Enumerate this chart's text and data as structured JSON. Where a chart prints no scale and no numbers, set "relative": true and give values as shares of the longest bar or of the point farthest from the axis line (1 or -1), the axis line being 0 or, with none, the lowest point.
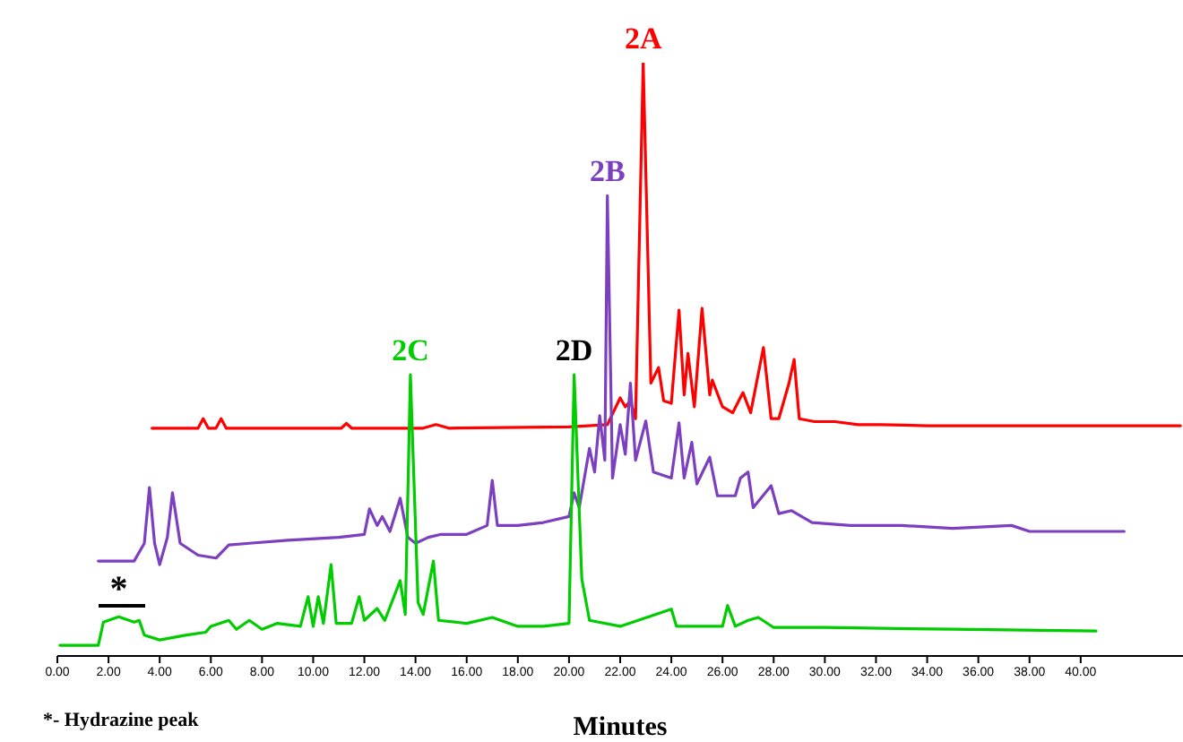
{
  "chart_data": {
    "type": "line",
    "relative": true,
    "xlabel": "Minutes",
    "xlim": [
      0,
      44
    ],
    "xticks": [
      {
        "value": 0,
        "label": "0.00"
      },
      {
        "value": 2,
        "label": "2.00"
      },
      {
        "value": 4,
        "label": "4.00"
      },
      {
        "value": 6,
        "label": "6.00"
      },
      {
        "value": 8,
        "label": "8.00"
      },
      {
        "value": 10,
        "label": "10.00"
      },
      {
        "value": 12,
        "label": "12.00"
      },
      {
        "value": 14,
        "label": "14.00"
      },
      {
        "value": 16,
        "label": "16.00"
      },
      {
        "value": 18,
        "label": "18.00"
      },
      {
        "value": 20,
        "label": "20.00"
      },
      {
        "value": 22,
        "label": "22.00"
      },
      {
        "value": 24,
        "label": "24.00"
      },
      {
        "value": 26,
        "label": "26.00"
      },
      {
        "value": 28,
        "label": "28.00"
      },
      {
        "value": 30,
        "label": "30.00"
      },
      {
        "value": 32,
        "label": "32.00"
      },
      {
        "value": 34,
        "label": "34.00"
      },
      {
        "value": 36,
        "label": "36.00"
      },
      {
        "value": 38,
        "label": "38.00"
      },
      {
        "value": 40,
        "label": "40.00"
      }
    ],
    "grid": false,
    "marker": "none",
    "line_style": "solid",
    "series": [
      {
        "color": "#ff0000",
        "x": [
          3.7,
          5.5,
          5.7,
          5.9,
          6.2,
          6.4,
          6.6,
          11.1,
          11.3,
          11.5,
          14.3,
          14.8,
          15.3,
          20,
          21.5,
          22.0,
          22.2,
          22.4,
          22.6,
          22.9,
          23.2,
          23.5,
          23.7,
          24.0,
          24.3,
          24.5,
          24.65,
          24.9,
          25.2,
          25.5,
          25.6,
          26.0,
          26.4,
          26.8,
          27.1,
          27.6,
          27.9,
          28.2,
          28.6,
          28.8,
          29.0,
          29.6,
          30.4,
          31.3,
          32.2,
          34,
          36,
          38.5,
          40,
          43.9
        ],
        "values": [
          0.384,
          0.384,
          0.4,
          0.384,
          0.384,
          0.4,
          0.384,
          0.384,
          0.392,
          0.384,
          0.384,
          0.39,
          0.384,
          0.386,
          0.39,
          0.435,
          0.42,
          0.43,
          0.4,
          1.0,
          0.46,
          0.486,
          0.43,
          0.426,
          0.583,
          0.44,
          0.51,
          0.42,
          0.586,
          0.44,
          0.465,
          0.42,
          0.41,
          0.444,
          0.41,
          0.52,
          0.4,
          0.4,
          0.46,
          0.5,
          0.4,
          0.395,
          0.395,
          0.39,
          0.39,
          0.388,
          0.388,
          0.388,
          0.388,
          0.388
        ]
      },
      {
        "color": "#7b3fbf",
        "x": [
          1.6,
          3.0,
          3.4,
          3.6,
          3.8,
          4.0,
          4.3,
          4.5,
          4.8,
          5.5,
          6.2,
          6.7,
          7.5,
          9,
          11,
          12,
          12.2,
          12.5,
          12.7,
          13.0,
          13.4,
          13.7,
          14.0,
          14.5,
          15,
          16,
          16.8,
          17.0,
          17.2,
          18,
          19,
          20,
          20.2,
          20.4,
          20.8,
          21.0,
          21.2,
          21.4,
          21.5,
          21.7,
          22.0,
          22.2,
          22.4,
          22.6,
          23.0,
          23.3,
          24.0,
          24.3,
          24.5,
          24.8,
          25.0,
          25.5,
          25.8,
          26.5,
          26.7,
          27.0,
          27.2,
          27.9,
          28.2,
          28.7,
          29.5,
          31,
          33,
          35,
          37.3,
          38,
          40,
          41.7
        ],
        "values": [
          0.16,
          0.16,
          0.19,
          0.284,
          0.19,
          0.154,
          0.2,
          0.275,
          0.19,
          0.17,
          0.165,
          0.187,
          0.19,
          0.195,
          0.2,
          0.205,
          0.248,
          0.22,
          0.235,
          0.21,
          0.266,
          0.2,
          0.19,
          0.2,
          0.205,
          0.205,
          0.22,
          0.296,
          0.22,
          0.22,
          0.225,
          0.235,
          0.275,
          0.25,
          0.35,
          0.31,
          0.405,
          0.33,
          0.776,
          0.3,
          0.39,
          0.34,
          0.46,
          0.33,
          0.396,
          0.31,
          0.3,
          0.393,
          0.3,
          0.36,
          0.29,
          0.335,
          0.27,
          0.27,
          0.3,
          0.31,
          0.25,
          0.287,
          0.24,
          0.245,
          0.225,
          0.22,
          0.22,
          0.215,
          0.22,
          0.21,
          0.21,
          0.21
        ]
      },
      {
        "color": "#00cc00",
        "x": [
          0.1,
          1.6,
          1.8,
          2.4,
          3.0,
          3.2,
          3.4,
          4.0,
          5.0,
          5.8,
          6.0,
          6.7,
          7.0,
          7.5,
          8,
          8.6,
          9.5,
          9.8,
          10.0,
          10.2,
          10.4,
          10.7,
          10.9,
          11.5,
          11.8,
          12.0,
          12.5,
          12.8,
          13.4,
          13.6,
          13.8,
          14.1,
          14.3,
          14.7,
          14.9,
          16,
          17.0,
          18,
          19,
          20.0,
          20.2,
          20.5,
          20.8,
          22,
          24.0,
          24.2,
          26.0,
          26.2,
          26.5,
          27.0,
          27.4,
          28,
          30,
          35,
          40.6
        ],
        "values": [
          0.018,
          0.018,
          0.057,
          0.066,
          0.057,
          0.06,
          0.035,
          0.027,
          0.035,
          0.04,
          0.05,
          0.06,
          0.045,
          0.06,
          0.045,
          0.055,
          0.05,
          0.1,
          0.05,
          0.1,
          0.055,
          0.154,
          0.055,
          0.055,
          0.1,
          0.06,
          0.08,
          0.06,
          0.127,
          0.07,
          0.474,
          0.09,
          0.07,
          0.16,
          0.06,
          0.055,
          0.065,
          0.05,
          0.05,
          0.055,
          0.474,
          0.13,
          0.06,
          0.05,
          0.079,
          0.05,
          0.05,
          0.085,
          0.05,
          0.06,
          0.065,
          0.048,
          0.048,
          0.045,
          0.042
        ]
      }
    ],
    "annotations": [
      {
        "text": "2A",
        "x": 22.9,
        "y": 1.0
      },
      {
        "text": "2B",
        "x": 21.5,
        "y": 0.776
      },
      {
        "text": "2C",
        "x": 13.8,
        "y": 0.474
      },
      {
        "text": "2D",
        "x": 20.2,
        "y": 0.474
      },
      {
        "text": "*",
        "x": 2.4,
        "y": 0.066
      },
      "*- Hydrazine peak"
    ]
  }
}
